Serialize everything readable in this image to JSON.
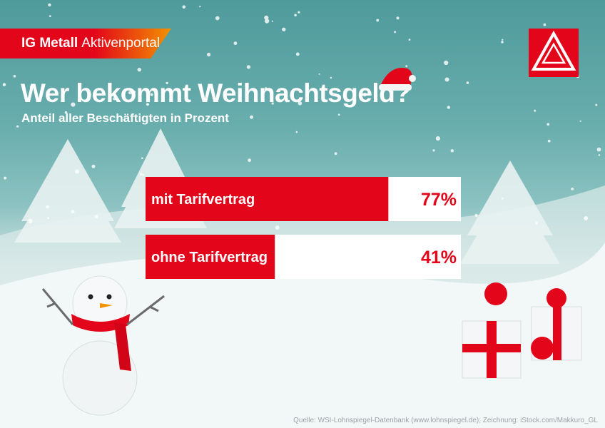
{
  "brand": {
    "name": "IG Metall",
    "section": "Aktivenportal"
  },
  "logo": {
    "icon": "ig-metall-logo-icon",
    "color": "#e3051a"
  },
  "title": "Wer bekommt Weihnachtsgeld?",
  "subtitle": "Anteil aller Beschäftigten in Prozent",
  "source": "Quelle: WSI-Lohnspiegel-Datenbank (www.lohnspiegel.de); Zeichnung: iStock.com/Makkuro_GL",
  "colors": {
    "bar": "#e3051a",
    "track": "#ffffff",
    "value": "#e3051a"
  },
  "chart_data": {
    "type": "bar",
    "orientation": "horizontal",
    "categories": [
      "mit Tarifvertrag",
      "ohne Tarifvertrag"
    ],
    "values": [
      77,
      41
    ],
    "value_labels": [
      "77%",
      "41%"
    ],
    "ylim": [
      0,
      100
    ],
    "grid": false
  }
}
